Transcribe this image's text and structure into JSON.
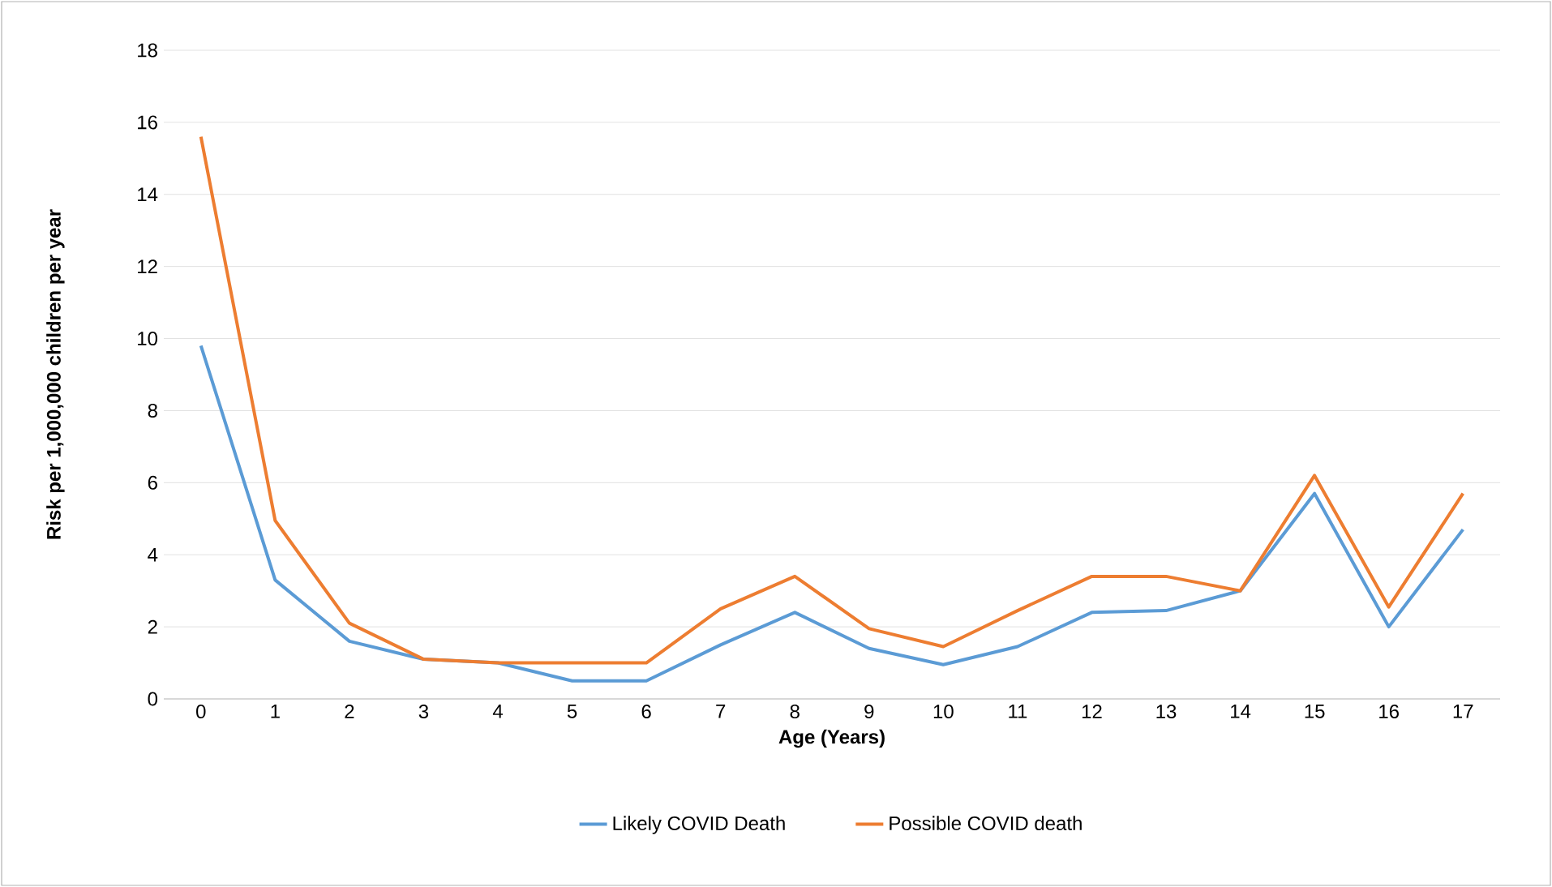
{
  "chart_data": {
    "type": "line",
    "xlabel": "Age (Years)",
    "ylabel": "Risk per 1,000,000 children per year",
    "categories": [
      "0",
      "1",
      "2",
      "3",
      "4",
      "5",
      "6",
      "7",
      "8",
      "9",
      "10",
      "11",
      "12",
      "13",
      "14",
      "15",
      "16",
      "17"
    ],
    "series": [
      {
        "name": "Likely COVID Death",
        "color": "#5b9bd5",
        "values": [
          9.8,
          3.3,
          1.6,
          1.1,
          1.0,
          0.5,
          0.5,
          1.5,
          2.4,
          1.4,
          0.95,
          1.45,
          2.4,
          2.45,
          3.0,
          5.7,
          2.0,
          4.7
        ]
      },
      {
        "name": "Possible COVID death",
        "color": "#ed7d31",
        "values": [
          15.6,
          4.95,
          2.1,
          1.1,
          1.0,
          1.0,
          1.0,
          2.5,
          3.4,
          1.95,
          1.45,
          2.45,
          3.4,
          3.4,
          3.0,
          6.2,
          2.55,
          5.7
        ]
      }
    ],
    "ylim": [
      0,
      18
    ],
    "yticks": [
      0,
      2,
      4,
      6,
      8,
      10,
      12,
      14,
      16,
      18
    ],
    "grid": "y",
    "legend": "bottom",
    "marker": "none",
    "line_style": "solid"
  }
}
